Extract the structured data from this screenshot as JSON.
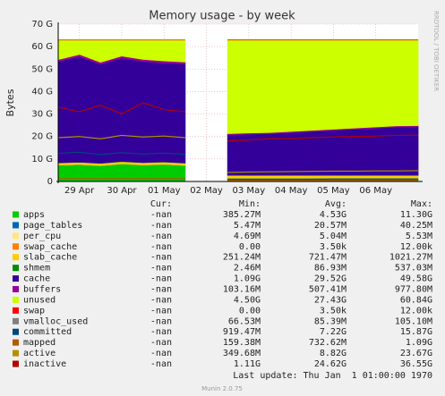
{
  "chart_data": {
    "type": "area",
    "title": "Memory usage - by week",
    "y_label": "Bytes",
    "side_label": "RRDTOOL / TOBI OETIKER",
    "categories": [
      null,
      "29 Apr",
      null,
      "30 Apr",
      null,
      "01 May",
      null,
      "02 May",
      null,
      "03 May",
      null,
      "04 May",
      null,
      "05 May",
      null,
      "06 May",
      null,
      null
    ],
    "ylim": [
      0,
      70
    ],
    "yticks": [
      0,
      {
        "value": 10,
        "label": "10 G"
      },
      {
        "value": 20,
        "label": "20 G"
      },
      {
        "value": 30,
        "label": "30 G"
      },
      {
        "value": 40,
        "label": "40 G"
      },
      {
        "value": 50,
        "label": "50 G"
      },
      {
        "value": 60,
        "label": "60 G"
      },
      {
        "value": 70,
        "label": "70 G"
      }
    ],
    "grid": true,
    "legend_header": [
      "Cur:",
      "Min:",
      "Avg:",
      "Max:"
    ],
    "series": [
      {
        "name": "apps",
        "color": "#00cc00",
        "draw": "stack",
        "stats": [
          "-nan",
          "385.27M",
          "4.53G",
          "11.30G"
        ],
        "values": [
          7.2,
          7.5,
          7.0,
          7.8,
          7.3,
          7.6,
          7.1,
          null,
          1.5,
          1.5,
          1.5,
          1.5,
          1.5,
          1.5,
          1.5,
          1.5,
          1.5,
          1.5
        ]
      },
      {
        "name": "page_tables",
        "color": "#0066b3",
        "draw": "stack",
        "stats": [
          "-nan",
          "5.47M",
          "20.57M",
          "40.25M"
        ],
        "values": [
          0.05,
          0.05,
          0.05,
          0.05,
          0.05,
          0.05,
          0.05,
          null,
          0.02,
          0.02,
          0.02,
          0.02,
          0.02,
          0.02,
          0.02,
          0.02,
          0.02,
          0.02
        ]
      },
      {
        "name": "per_cpu",
        "color": "#ffe680",
        "draw": "stack",
        "stats": [
          "-nan",
          "4.69M",
          "5.04M",
          "5.53M"
        ],
        "values": [
          0.005,
          0.005,
          0.005,
          0.005,
          0.005,
          0.005,
          0.005,
          null,
          0.005,
          0.005,
          0.005,
          0.005,
          0.005,
          0.005,
          0.005,
          0.005,
          0.005,
          0.005
        ]
      },
      {
        "name": "swap_cache",
        "color": "#ff8000",
        "draw": "stack",
        "stats": [
          "-nan",
          "0.00",
          "3.50k",
          "12.00k"
        ],
        "values": [
          0,
          0,
          0,
          0,
          0,
          0,
          0,
          null,
          0,
          0,
          0,
          0,
          0,
          0,
          0,
          0,
          0,
          0
        ]
      },
      {
        "name": "slab_cache",
        "color": "#ffcc00",
        "draw": "stack",
        "stats": [
          "-nan",
          "251.24M",
          "721.47M",
          "1021.27M"
        ],
        "values": [
          1.0,
          1.0,
          1.0,
          1.0,
          1.0,
          1.0,
          1.0,
          null,
          1.2,
          1.2,
          1.2,
          1.2,
          1.2,
          1.2,
          1.2,
          1.2,
          1.2,
          1.2
        ]
      },
      {
        "name": "shmem",
        "color": "#008f00",
        "draw": "stack",
        "stats": [
          "-nan",
          "2.46M",
          "86.93M",
          "537.03M"
        ],
        "values": [
          0.1,
          0.1,
          0.1,
          0.1,
          0.1,
          0.1,
          0.1,
          null,
          0.05,
          0.05,
          0.05,
          0.05,
          0.05,
          0.05,
          0.05,
          0.05,
          0.05,
          0.05
        ]
      },
      {
        "name": "cache",
        "color": "#330099",
        "draw": "stack",
        "stats": [
          "-nan",
          "1.09G",
          "29.52G",
          "49.58G"
        ],
        "values": [
          45,
          47,
          44,
          46,
          45,
          44,
          44,
          null,
          18,
          18.3,
          18.5,
          19,
          19.5,
          20,
          20.5,
          21,
          21.5,
          21.6
        ]
      },
      {
        "name": "buffers",
        "color": "#990099",
        "draw": "stack",
        "stats": [
          "-nan",
          "103.16M",
          "507.41M",
          "977.80M"
        ],
        "values": [
          0.9,
          0.9,
          0.9,
          0.9,
          0.9,
          0.9,
          0.9,
          null,
          0.5,
          0.5,
          0.5,
          0.5,
          0.5,
          0.5,
          0.5,
          0.5,
          0.5,
          0.5
        ]
      },
      {
        "name": "unused",
        "color": "#ccff00",
        "draw": "stack",
        "stats": [
          "-nan",
          "4.50G",
          "27.43G",
          "60.84G"
        ],
        "values": [
          8.7,
          6.4,
          9.9,
          7.1,
          8.6,
          9.3,
          9.8,
          null,
          41.7,
          41.4,
          41.2,
          40.7,
          40.2,
          39.7,
          39.2,
          38.7,
          38.2,
          38.1
        ]
      },
      {
        "name": "swap",
        "color": "#ff0000",
        "draw": "stack",
        "stats": [
          "-nan",
          "0.00",
          "3.50k",
          "12.00k"
        ],
        "values": [
          0,
          0,
          0,
          0,
          0,
          0,
          0,
          null,
          0,
          0,
          0,
          0,
          0,
          0,
          0,
          0,
          0,
          0
        ]
      },
      {
        "name": "vmalloc_used",
        "color": "#808080",
        "draw": "line",
        "stats": [
          "-nan",
          "66.53M",
          "85.39M",
          "105.10M"
        ],
        "values": [
          0.08,
          0.08,
          0.08,
          0.08,
          0.08,
          0.08,
          0.08,
          null,
          0.08,
          0.08,
          0.08,
          0.08,
          0.08,
          0.08,
          0.08,
          0.08,
          0.08,
          0.08
        ]
      },
      {
        "name": "committed",
        "color": "#00487d",
        "draw": "line",
        "stats": [
          "-nan",
          "919.47M",
          "7.22G",
          "15.87G"
        ],
        "values": [
          12.5,
          13,
          12,
          12.8,
          12.2,
          12.6,
          12.1,
          null,
          1,
          1,
          1,
          1,
          1,
          1.1,
          1.1,
          1.1,
          1.1,
          1.1
        ]
      },
      {
        "name": "mapped",
        "color": "#b35a00",
        "draw": "line",
        "stats": [
          "-nan",
          "159.38M",
          "732.62M",
          "1.09G"
        ],
        "values": [
          1.2,
          1.2,
          1.2,
          1.2,
          1.2,
          1.2,
          1.2,
          null,
          0.5,
          0.5,
          0.5,
          0.5,
          0.5,
          0.5,
          0.5,
          0.5,
          0.5,
          0.5
        ]
      },
      {
        "name": "active",
        "color": "#b38f00",
        "draw": "line",
        "stats": [
          "-nan",
          "349.68M",
          "8.82G",
          "23.67G"
        ],
        "values": [
          19.5,
          20,
          19,
          20.5,
          19.8,
          20.2,
          19.5,
          null,
          4,
          4.2,
          4.3,
          4.4,
          4.5,
          4.6,
          4.6,
          4.7,
          4.7,
          4.8
        ]
      },
      {
        "name": "inactive",
        "color": "#b30000",
        "draw": "line",
        "stats": [
          "-nan",
          "1.11G",
          "24.62G",
          "36.55G"
        ],
        "values": [
          33,
          31,
          34,
          30,
          35,
          32,
          31,
          null,
          18,
          18.5,
          19,
          19.2,
          19.5,
          19.8,
          20,
          20.2,
          20.5,
          20.6
        ]
      }
    ],
    "last_update": "Last update: Thu Jan  1 01:00:00 1970",
    "footer": "Munin 2.0.75"
  }
}
